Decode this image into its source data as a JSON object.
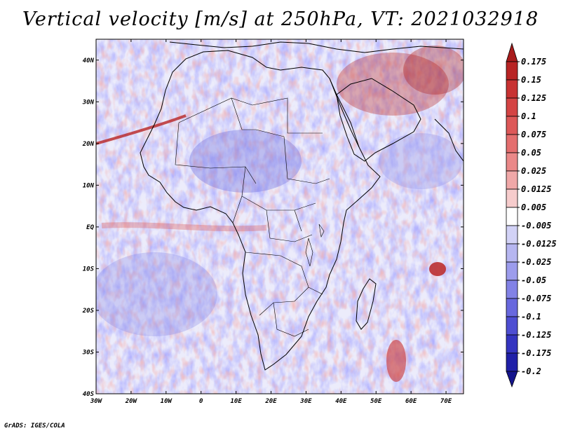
{
  "credit": "GrADS: IGES/COLA",
  "chart_data": {
    "type": "heatmap",
    "title": "Vertical velocity [m/s] at 250hPa, VT: 2021032918",
    "variable": "Vertical velocity",
    "units": "m/s",
    "level": "250hPa",
    "valid_time": "2021032918",
    "region": "Africa",
    "xlabel": "",
    "ylabel": "",
    "xlim": [
      -30,
      75
    ],
    "ylim": [
      -40,
      45
    ],
    "x_ticks": [
      -30,
      -20,
      -10,
      0,
      10,
      20,
      30,
      40,
      50,
      60,
      70
    ],
    "x_tick_labels": [
      "30W",
      "20W",
      "10W",
      "0",
      "10E",
      "20E",
      "30E",
      "40E",
      "50E",
      "60E",
      "70E"
    ],
    "y_ticks": [
      40,
      30,
      20,
      10,
      0,
      -10,
      -20,
      -30,
      -40
    ],
    "y_tick_labels": [
      "40N",
      "30N",
      "20N",
      "10N",
      "EQ",
      "10S",
      "20S",
      "30S",
      "40S"
    ],
    "colorbar": {
      "levels": [
        0.175,
        0.15,
        0.125,
        0.1,
        0.075,
        0.05,
        0.025,
        0.0125,
        0.005,
        -0.005,
        -0.0125,
        -0.025,
        -0.05,
        -0.075,
        -0.1,
        -0.125,
        -0.175,
        -0.2
      ],
      "labels": [
        "0.175",
        "0.15",
        "0.125",
        "0.1",
        "0.075",
        "0.05",
        "0.025",
        "0.0125",
        "0.005",
        "-0.005",
        "-0.0125",
        "-0.025",
        "-0.05",
        "-0.075",
        "-0.1",
        "-0.125",
        "-0.175",
        "-0.2"
      ],
      "colors": [
        "#a81c1c",
        "#b82424",
        "#c83232",
        "#d44444",
        "#dd5858",
        "#e46e6e",
        "#ea8888",
        "#f0a8a8",
        "#f6cccc",
        "#ffffff",
        "#d2d2f6",
        "#b6b6f0",
        "#9c9cec",
        "#8282e6",
        "#6868de",
        "#4e4ed2",
        "#3434c0",
        "#2020a8",
        "#14148c"
      ],
      "extend": "both"
    }
  },
  "colors": {
    "upward": "#c83232",
    "downward": "#4e4ed2",
    "neutral": "#ffffff"
  }
}
